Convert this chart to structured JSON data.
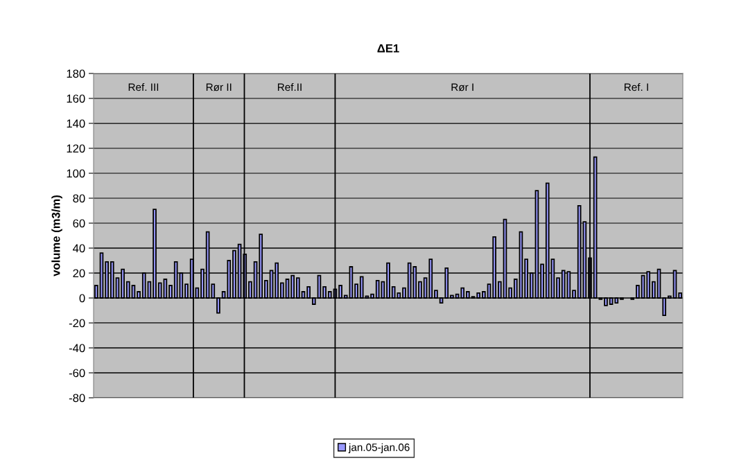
{
  "chart_data": {
    "type": "bar",
    "title": "ΔE1",
    "ylabel": "volume (m3/m)",
    "categories": [
      null,
      null,
      null,
      null,
      null,
      null,
      null,
      null,
      null,
      null,
      null,
      null,
      null,
      null,
      null,
      null,
      null,
      null,
      null,
      null,
      null,
      null,
      null,
      null,
      null,
      null,
      null,
      null,
      null,
      null,
      null,
      null,
      null,
      null,
      null,
      null,
      null,
      null,
      null,
      null,
      null,
      null,
      null,
      null,
      null,
      null,
      null,
      null,
      null,
      null,
      null,
      null,
      null,
      null,
      null,
      null,
      null,
      null,
      null,
      null,
      null,
      null,
      null,
      null,
      null,
      null,
      null,
      null,
      null,
      null,
      null,
      null,
      null,
      null,
      null,
      null,
      null,
      null,
      null,
      null,
      null,
      null,
      null,
      null,
      null,
      null,
      null,
      null,
      null,
      null,
      null,
      null,
      null,
      null,
      null,
      null,
      null,
      null,
      null,
      null,
      null,
      null,
      null,
      null,
      null,
      null,
      null,
      null,
      null,
      null,
      null
    ],
    "series": [
      {
        "name": "jan.05-jan.06",
        "color": "#9999ff",
        "values": [
          10,
          36,
          29,
          29,
          16,
          23,
          13,
          10,
          5,
          20,
          13,
          71,
          12,
          15,
          10,
          29,
          20,
          11,
          31,
          8,
          23,
          53,
          11,
          -12,
          5,
          30,
          38,
          43,
          35,
          13,
          29,
          51,
          14,
          22,
          28,
          12,
          15,
          18,
          16,
          5,
          9,
          -5,
          18,
          9,
          5,
          7,
          10,
          2,
          25,
          11,
          17,
          1.5,
          3,
          14,
          13,
          28,
          9,
          4,
          8,
          28,
          25,
          13,
          16,
          31,
          6,
          -4,
          24,
          2,
          3,
          8,
          5,
          1,
          4,
          5,
          11,
          49,
          13,
          63,
          8,
          15,
          53,
          31,
          20,
          86,
          27,
          92,
          31,
          16,
          22,
          21,
          6,
          74,
          61,
          32,
          113,
          -1,
          -6,
          -5,
          -4,
          -1,
          null,
          -1,
          10,
          18,
          21,
          13,
          23,
          -14,
          1.5,
          22,
          4
        ]
      }
    ],
    "ylim": [
      -80,
      180
    ],
    "yticks": [
      -80,
      -60,
      -40,
      -20,
      0,
      20,
      40,
      60,
      80,
      100,
      120,
      140,
      160,
      180
    ],
    "tick_labels": "y",
    "grid": "y",
    "legend": "bottom",
    "annotations": [
      "Ref. III",
      "Rør II",
      "Ref.II",
      "Rør I",
      "Ref. I"
    ]
  }
}
